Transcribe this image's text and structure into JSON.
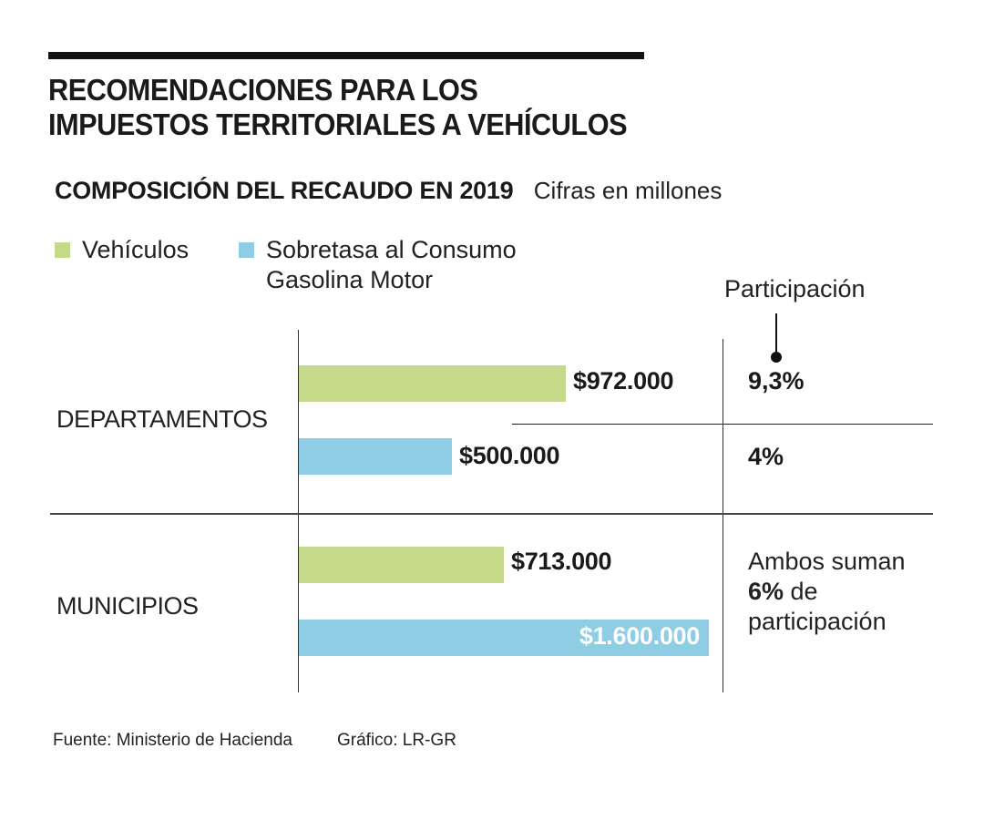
{
  "header": {
    "title_line1": "RECOMENDACIONES PARA LOS",
    "title_line2": "IMPUESTOS TERRITORIALES A VEHÍCULOS",
    "subtitle": "COMPOSICIÓN DEL RECAUDO EN 2019",
    "subnote": "Cifras en millones"
  },
  "legend": {
    "items": [
      {
        "label_line1": "Vehículos",
        "label_line2": "",
        "color": "#c5d98a"
      },
      {
        "label_line1": "Sobretasa al Consumo",
        "label_line2": "Gasolina Motor",
        "color": "#8ecde3"
      }
    ]
  },
  "participation": {
    "heading": "Participación",
    "departamentos_vehiculos": "9,3%",
    "departamentos_sobretasa": "4%",
    "municipios_note_line1": "Ambos suman",
    "municipios_note_bold": "6%",
    "municipios_note_rest": " de",
    "municipios_note_line3": "participación"
  },
  "footer": {
    "source": "Fuente: Ministerio de Hacienda",
    "credit": "Gráfico: LR-GR"
  },
  "chart_data": {
    "type": "bar",
    "orientation": "horizontal",
    "title": "COMPOSICIÓN DEL RECAUDO EN 2019",
    "subtitle": "Cifras en millones",
    "categories": [
      "DEPARTAMENTOS",
      "MUNICIPIOS"
    ],
    "series": [
      {
        "name": "Vehículos",
        "color": "#c5d98a",
        "values": [
          972000,
          713000
        ],
        "labels": [
          "$972.000",
          "$713.000"
        ]
      },
      {
        "name": "Sobretasa al Consumo Gasolina Motor",
        "color": "#8ecde3",
        "values": [
          500000,
          1600000
        ],
        "labels": [
          "$500.000",
          "$1.600.000"
        ]
      }
    ],
    "participation": {
      "DEPARTAMENTOS": {
        "Vehículos": "9,3%",
        "Sobretasa al Consumo Gasolina Motor": "4%"
      },
      "MUNICIPIOS": {
        "combined": "6%"
      }
    },
    "xlabel": "",
    "ylabel": "",
    "grid": false,
    "legend_position": "top-left"
  }
}
